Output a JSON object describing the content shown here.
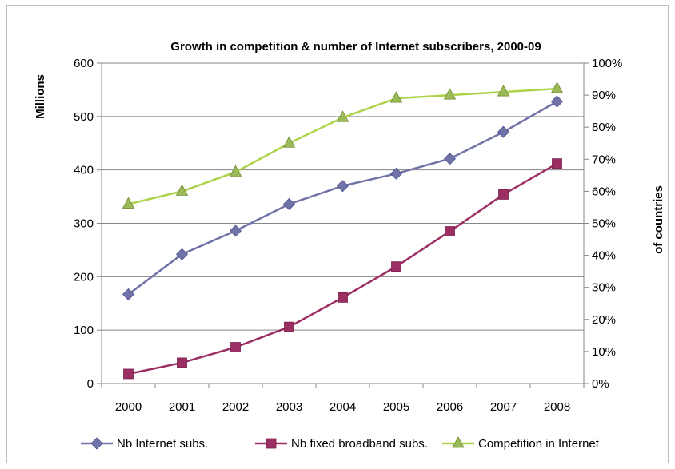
{
  "chart_data": {
    "type": "line",
    "title": "Growth in competition & number of Internet subscribers, 2000-09",
    "ylabel_left": "Millions",
    "ylabel_right": "of  countries",
    "categories": [
      "2000",
      "2001",
      "2002",
      "2003",
      "2004",
      "2005",
      "2006",
      "2007",
      "2008"
    ],
    "y_left": {
      "min": 0,
      "max": 600,
      "step": 100,
      "ticks": [
        "0",
        "100",
        "200",
        "300",
        "400",
        "500",
        "600"
      ]
    },
    "y_right": {
      "min": 0,
      "max": 100,
      "step": 10,
      "ticks": [
        "0%",
        "10%",
        "20%",
        "30%",
        "40%",
        "50%",
        "60%",
        "70%",
        "80%",
        "90%",
        "100%"
      ]
    },
    "grid": true,
    "legend_position": "bottom",
    "series": [
      {
        "name": "Nb Internet subs.",
        "axis": "left",
        "marker": "diamond",
        "color": "#7072a8",
        "values": [
          167,
          242,
          286,
          336,
          370,
          393,
          421,
          471,
          528
        ]
      },
      {
        "name": "Nb fixed broadband subs.",
        "axis": "left",
        "marker": "square",
        "color": "#9b2f63",
        "values": [
          18,
          39,
          68,
          106,
          161,
          219,
          285,
          354,
          412
        ]
      },
      {
        "name": "Competition in Internet",
        "axis": "right",
        "marker": "triangle",
        "color": "#aed24a",
        "marker_fill": "#9bbb59",
        "values": [
          56,
          60,
          66,
          75,
          83,
          89,
          90,
          91,
          92
        ]
      }
    ]
  }
}
